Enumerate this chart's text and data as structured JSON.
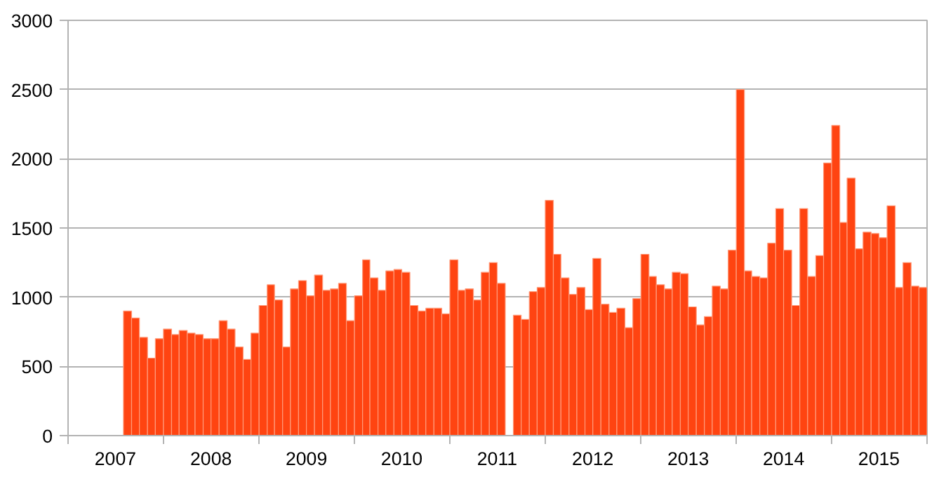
{
  "chart_data": {
    "type": "bar",
    "x": [
      "2007-08",
      "2007-09",
      "2007-10",
      "2007-11",
      "2007-12",
      "2008-01",
      "2008-02",
      "2008-03",
      "2008-04",
      "2008-05",
      "2008-06",
      "2008-07",
      "2008-08",
      "2008-09",
      "2008-10",
      "2008-11",
      "2008-12",
      "2009-01",
      "2009-02",
      "2009-03",
      "2009-04",
      "2009-05",
      "2009-06",
      "2009-07",
      "2009-08",
      "2009-09",
      "2009-10",
      "2009-11",
      "2009-12",
      "2010-01",
      "2010-02",
      "2010-03",
      "2010-04",
      "2010-05",
      "2010-06",
      "2010-07",
      "2010-08",
      "2010-09",
      "2010-10",
      "2010-11",
      "2010-12",
      "2011-01",
      "2011-02",
      "2011-03",
      "2011-04",
      "2011-05",
      "2011-06",
      "2011-07",
      "2011-08",
      "2011-09",
      "2011-10",
      "2011-11",
      "2011-12",
      "2012-01",
      "2012-02",
      "2012-03",
      "2012-04",
      "2012-05",
      "2012-06",
      "2012-07",
      "2012-08",
      "2012-09",
      "2012-10",
      "2012-11",
      "2012-12",
      "2013-01",
      "2013-02",
      "2013-03",
      "2013-04",
      "2013-05",
      "2013-06",
      "2013-07",
      "2013-08",
      "2013-09",
      "2013-10",
      "2013-11",
      "2013-12",
      "2014-01",
      "2014-02",
      "2014-03",
      "2014-04",
      "2014-05",
      "2014-06",
      "2014-07",
      "2014-08",
      "2014-09",
      "2014-10",
      "2014-11",
      "2014-12",
      "2015-01",
      "2015-02",
      "2015-03",
      "2015-04",
      "2015-05",
      "2015-06",
      "2015-07",
      "2015-08",
      "2015-09",
      "2015-10",
      "2015-11",
      "2015-12"
    ],
    "values": [
      900,
      850,
      710,
      560,
      700,
      770,
      730,
      760,
      740,
      730,
      700,
      700,
      830,
      770,
      640,
      550,
      740,
      940,
      1090,
      980,
      640,
      1060,
      1120,
      1010,
      1160,
      1050,
      1060,
      1100,
      830,
      1010,
      1270,
      1140,
      1050,
      1190,
      1200,
      1180,
      940,
      900,
      920,
      920,
      880,
      1270,
      1050,
      1060,
      980,
      1180,
      1250,
      1100,
      null,
      870,
      840,
      1040,
      1070,
      1700,
      1310,
      1140,
      1020,
      1070,
      910,
      1280,
      950,
      890,
      920,
      780,
      990,
      1310,
      1150,
      1090,
      1060,
      1180,
      1170,
      930,
      800,
      860,
      1080,
      1060,
      1340,
      2500,
      1190,
      1150,
      1140,
      1390,
      1640,
      1340,
      940,
      1640,
      1150,
      1300,
      1970,
      2240,
      1540,
      1860,
      1350,
      1470,
      1460,
      1430,
      1660,
      1070,
      1250,
      1080,
      1070
    ],
    "color": "#ff4411",
    "xlim": [
      "2007-01",
      "2016-01"
    ],
    "xticks": [
      {
        "value": "2007-01",
        "label": null
      },
      {
        "value": "2007-07",
        "label": "2007"
      },
      {
        "value": "2008-01",
        "label": null
      },
      {
        "value": "2008-07",
        "label": "2008"
      },
      {
        "value": "2009-01",
        "label": null
      },
      {
        "value": "2009-07",
        "label": "2009"
      },
      {
        "value": "2010-01",
        "label": null
      },
      {
        "value": "2010-07",
        "label": "2010"
      },
      {
        "value": "2011-01",
        "label": null
      },
      {
        "value": "2011-07",
        "label": "2011"
      },
      {
        "value": "2012-01",
        "label": null
      },
      {
        "value": "2012-07",
        "label": "2012"
      },
      {
        "value": "2013-01",
        "label": null
      },
      {
        "value": "2013-07",
        "label": "2013"
      },
      {
        "value": "2014-01",
        "label": null
      },
      {
        "value": "2014-07",
        "label": "2014"
      },
      {
        "value": "2015-01",
        "label": null
      },
      {
        "value": "2015-07",
        "label": "2015"
      },
      {
        "value": "2016-01",
        "label": null
      }
    ],
    "ylim": [
      0,
      3000
    ],
    "yticks": [
      0,
      500,
      1000,
      1500,
      2000,
      2500,
      3000
    ],
    "grid": "y"
  }
}
